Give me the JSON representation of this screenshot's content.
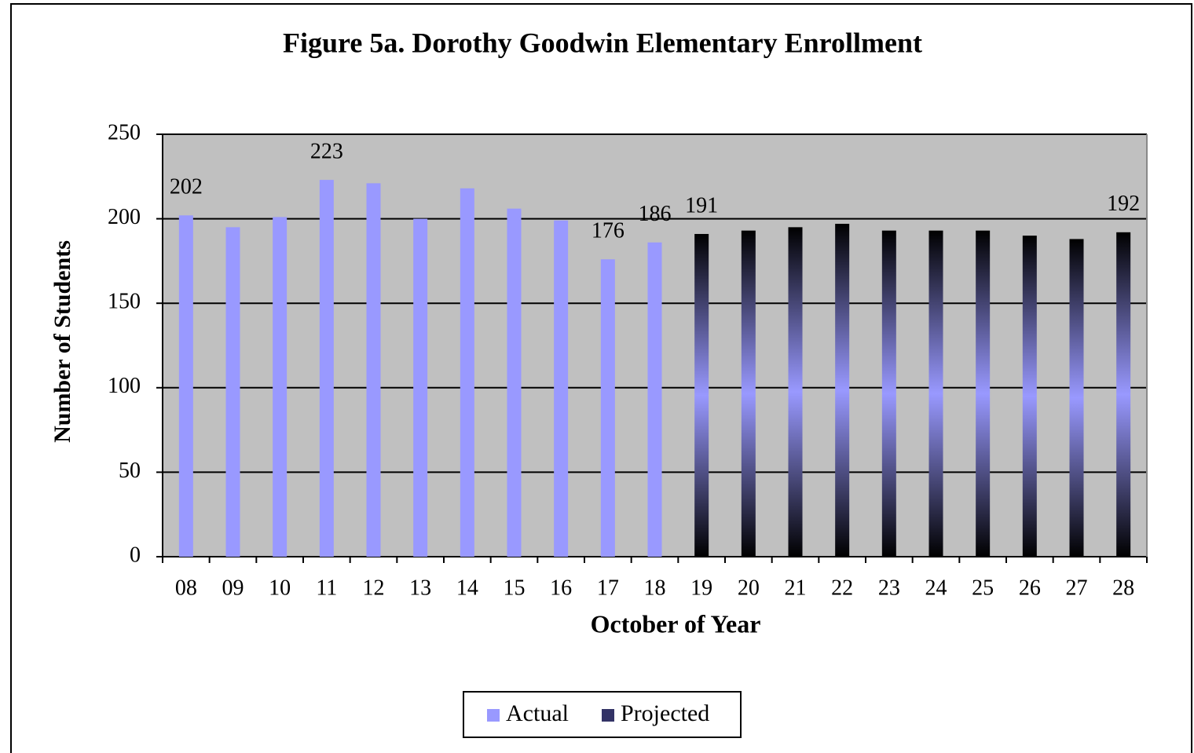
{
  "chart_data": {
    "type": "bar",
    "title": "Figure 5a. Dorothy Goodwin Elementary Enrollment",
    "x_label": "October of Year",
    "y_label": "Number of Students",
    "categories": [
      "08",
      "09",
      "10",
      "11",
      "12",
      "13",
      "14",
      "15",
      "16",
      "17",
      "18",
      "19",
      "20",
      "21",
      "22",
      "23",
      "24",
      "25",
      "26",
      "27",
      "28"
    ],
    "series": [
      {
        "name": "Actual",
        "color": "#9999ff",
        "values": [
          202,
          195,
          201,
          223,
          221,
          200,
          218,
          206,
          199,
          176,
          186,
          null,
          null,
          null,
          null,
          null,
          null,
          null,
          null,
          null,
          null
        ],
        "value_labels": [
          "202",
          null,
          null,
          "223",
          null,
          null,
          null,
          null,
          null,
          "176",
          "186",
          null,
          null,
          null,
          null,
          null,
          null,
          null,
          null,
          null,
          null
        ]
      },
      {
        "name": "Projected",
        "color": "#9999ff",
        "values": [
          null,
          null,
          null,
          null,
          null,
          null,
          null,
          null,
          null,
          null,
          null,
          191,
          193,
          195,
          197,
          193,
          193,
          193,
          190,
          188,
          192
        ],
        "value_labels": [
          null,
          null,
          null,
          null,
          null,
          null,
          null,
          null,
          null,
          null,
          null,
          "191",
          null,
          null,
          null,
          null,
          null,
          null,
          null,
          null,
          "192"
        ]
      }
    ],
    "ylim": [
      0,
      250
    ],
    "yticks": [
      0,
      50,
      100,
      150,
      200,
      250
    ],
    "grid": true,
    "legend": "bottom"
  }
}
